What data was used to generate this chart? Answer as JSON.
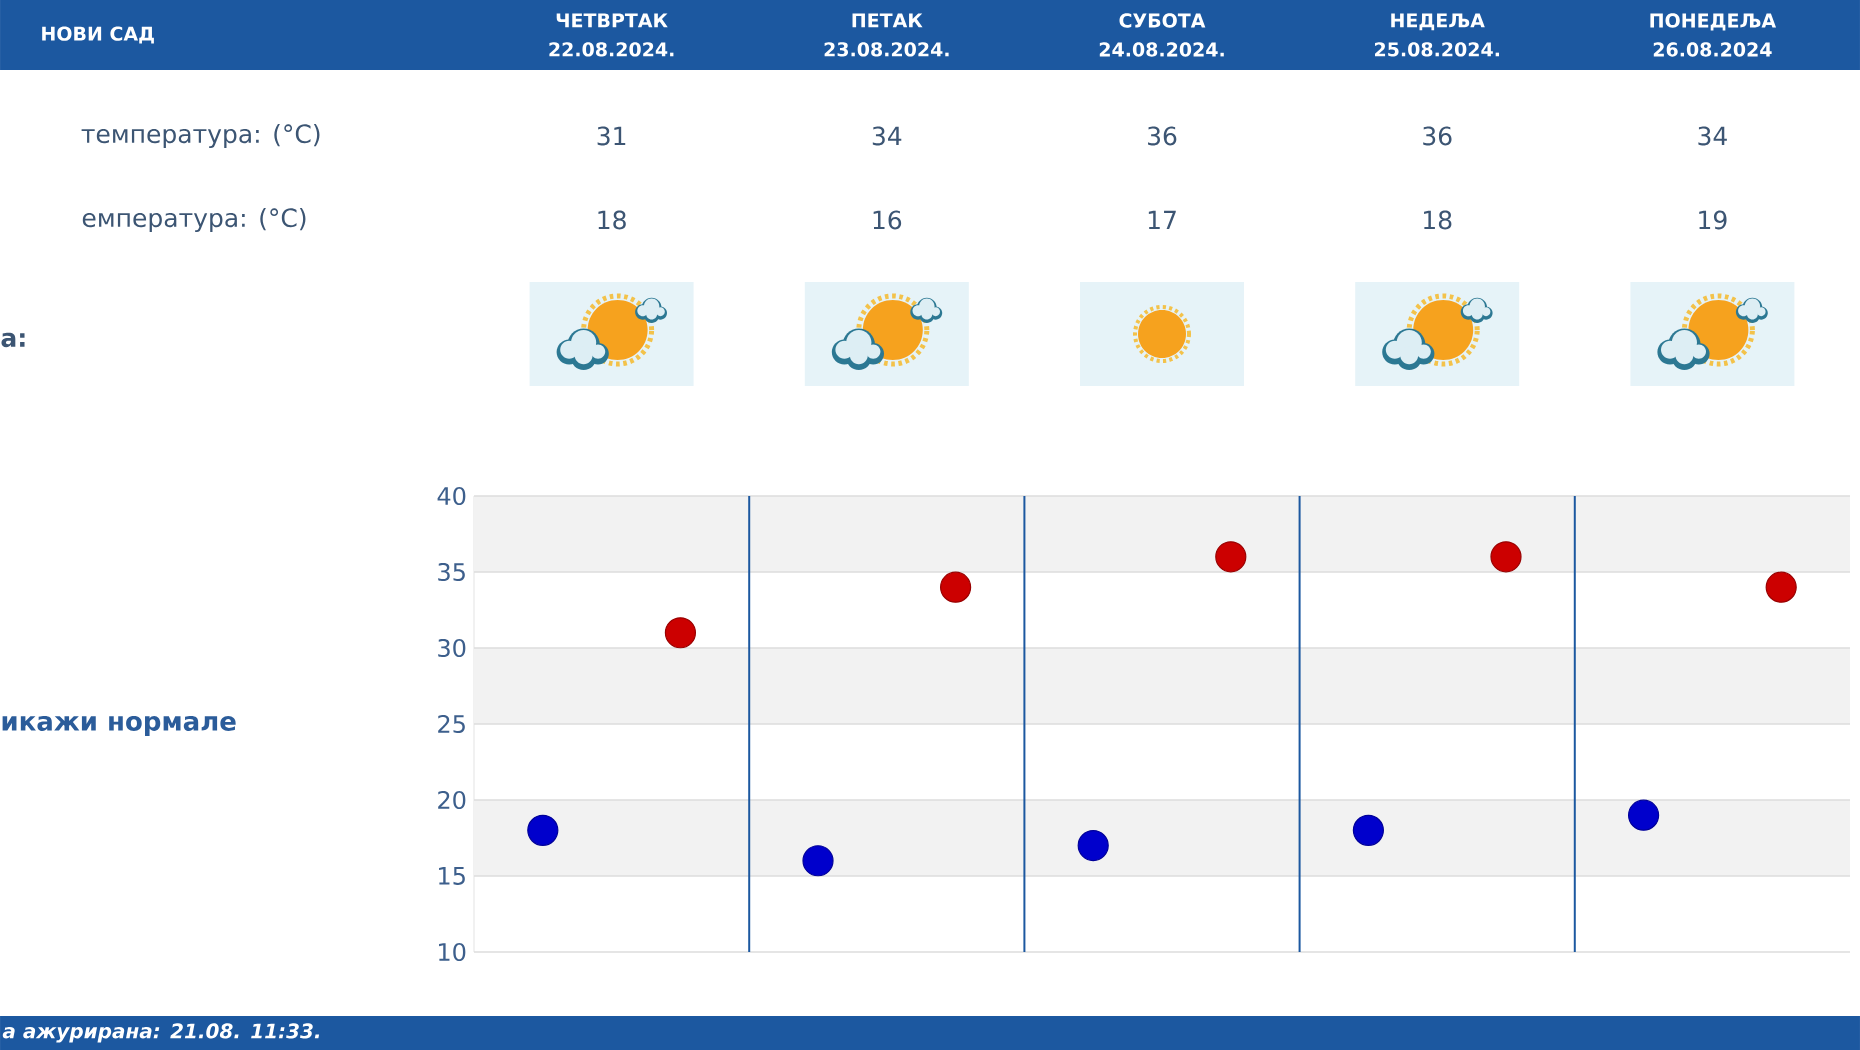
{
  "chart_data": {
    "type": "scatter",
    "title": "НОВИ САД",
    "categories": [
      null,
      null,
      null,
      null,
      null
    ],
    "series": [
      {
        "color": "#cc0000",
        "values": [
          31,
          34,
          36,
          36,
          34
        ]
      },
      {
        "color": "#0000cc",
        "values": [
          18,
          16,
          17,
          18,
          19
        ]
      }
    ],
    "ylim": [
      10,
      40
    ],
    "yticks": [
      10,
      15,
      20,
      25,
      30,
      35,
      40
    ],
    "grid": true,
    "bands": [
      {
        "axis": "y",
        "from": 35,
        "to": 40,
        "color": "#f2f2f2"
      },
      {
        "axis": "y",
        "from": 25,
        "to": 30,
        "color": "#f2f2f2"
      },
      {
        "axis": "y",
        "from": 15,
        "to": 20,
        "color": "#f2f2f2"
      }
    ],
    "marker": "circle",
    "data_labels": true,
    "annotations": [
      "ЧЕТВРТАК 22.08.2024.",
      "ПЕТАК 23.08.2024.",
      "СУБОТА 24.08.2024.",
      "НЕДЕЉА 25.08.2024.",
      "ПОНЕДЕЉА 26.08.2024",
      "температура: (°C)",
      "емпература: (°C)",
      "а:",
      "икажи нормале",
      "а ажурирана: 21.08. 11:33."
    ]
  }
}
